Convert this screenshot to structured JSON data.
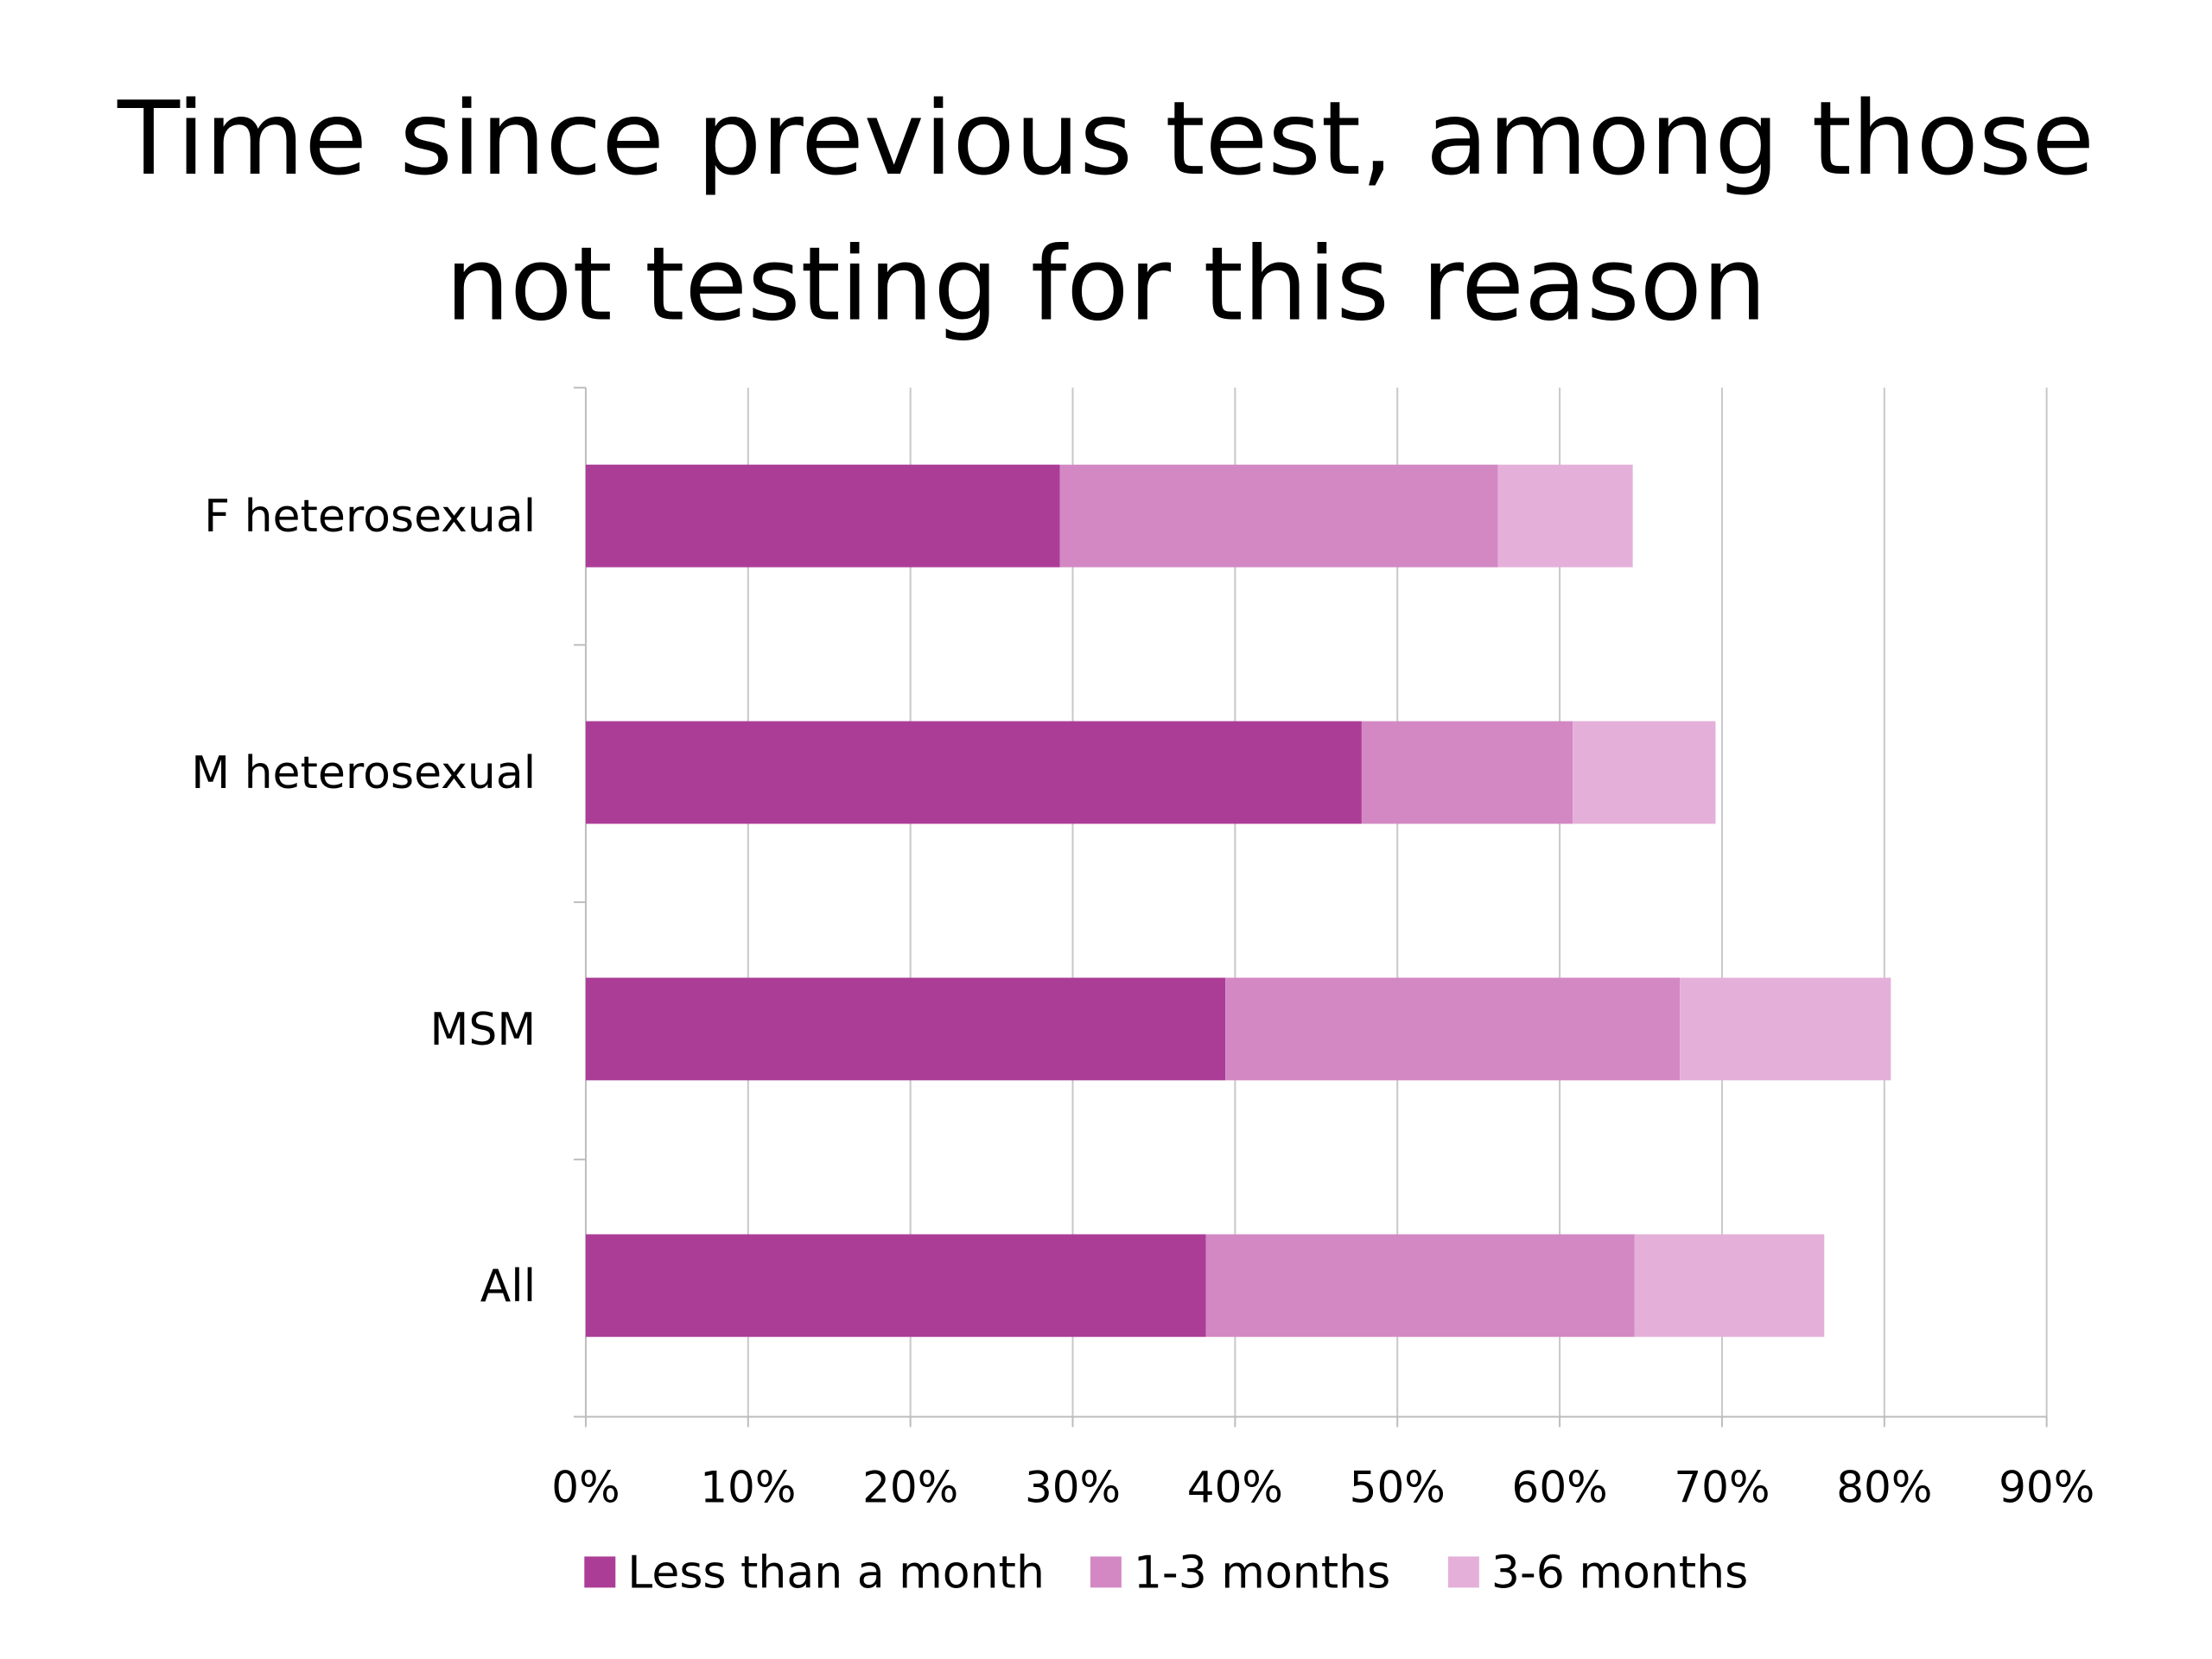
{
  "chart_data": {
    "type": "bar",
    "orientation": "horizontal",
    "stacked": true,
    "title_lines": [
      "Time since previous test, among those",
      "not testing for this reason"
    ],
    "categories": [
      "F heterosexual",
      "M heterosexual",
      "MSM",
      "All"
    ],
    "series": [
      {
        "name": "Less than a month",
        "color": "#ac3d97",
        "values": [
          29.2,
          47.8,
          39.4,
          38.2
        ]
      },
      {
        "name": "1-3 months",
        "color": "#d388c4",
        "values": [
          27.0,
          13.0,
          28.0,
          26.4
        ]
      },
      {
        "name": "3-6 months",
        "color": "#e4b0d9",
        "values": [
          8.3,
          8.8,
          13.0,
          11.7
        ]
      }
    ],
    "x_ticks": [
      "0%",
      "10%",
      "20%",
      "30%",
      "40%",
      "50%",
      "60%",
      "70%",
      "80%",
      "90%"
    ],
    "xlim": [
      0,
      90
    ],
    "xlabel": "",
    "ylabel": "",
    "grid": "vertical",
    "legend_position": "bottom"
  }
}
